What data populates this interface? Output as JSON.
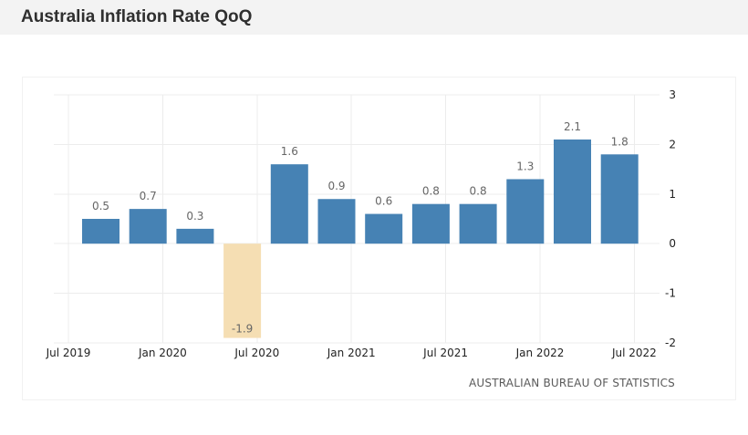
{
  "page_title": "Australia Inflation Rate QoQ",
  "source": "AUSTRALIAN BUREAU OF STATISTICS",
  "colors": {
    "positive_bar": "#4682b4",
    "negative_bar": "#f5deb3",
    "grid": "#ececec",
    "header_bg": "#f3f3f3"
  },
  "chart_data": {
    "type": "bar",
    "title": "Australia Inflation Rate QoQ",
    "xlabel": "",
    "ylabel": "",
    "ylim": [
      -2,
      3
    ],
    "y_ticks": [
      3,
      2,
      1,
      0,
      -1,
      -2
    ],
    "y_axis_position": "right",
    "grid": true,
    "categories": [
      "Sep 2019",
      "Dec 2019",
      "Mar 2020",
      "Jun 2020",
      "Sep 2020",
      "Dec 2020",
      "Mar 2021",
      "Jun 2021",
      "Sep 2021",
      "Dec 2021",
      "Mar 2022",
      "Jun 2022"
    ],
    "values": [
      0.5,
      0.7,
      0.3,
      -1.9,
      1.6,
      0.9,
      0.6,
      0.8,
      0.8,
      1.3,
      2.1,
      1.8
    ],
    "x_tick_labels": [
      "Jul 2019",
      "Jan 2020",
      "Jul 2020",
      "Jan 2021",
      "Jul 2021",
      "Jan 2022",
      "Jul 2022"
    ]
  }
}
